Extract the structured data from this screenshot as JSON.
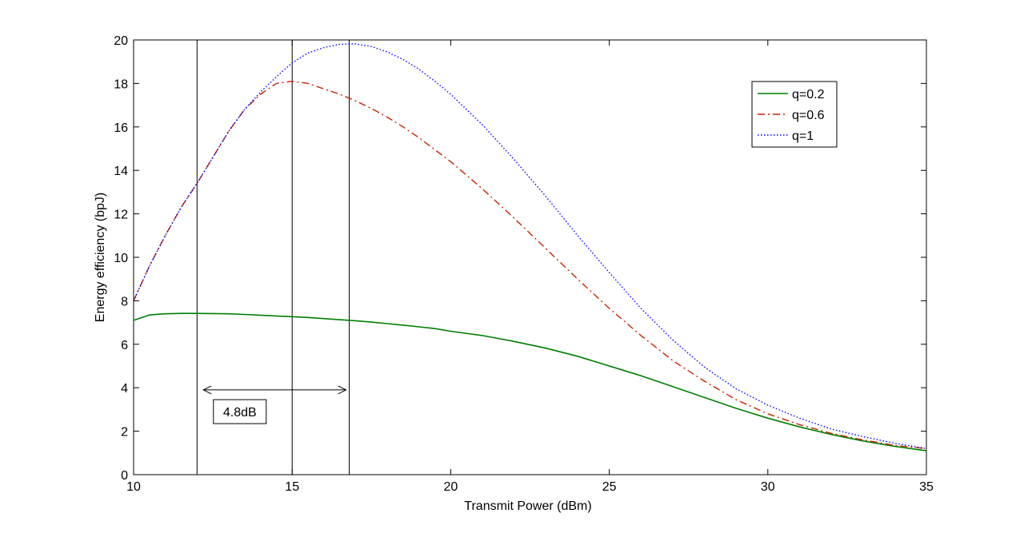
{
  "chart_data": {
    "type": "line",
    "title": "",
    "xlabel": "Transmit Power (dBm)",
    "ylabel": "Energy efficiency (bpJ)",
    "xlim": [
      10,
      35
    ],
    "ylim": [
      0,
      20
    ],
    "xticks": [
      10,
      15,
      20,
      25,
      30,
      35
    ],
    "yticks": [
      0,
      2,
      4,
      6,
      8,
      10,
      12,
      14,
      16,
      18,
      20
    ],
    "grid": false,
    "legend_position": "top-right",
    "x": [
      10,
      10.5,
      11,
      11.5,
      12,
      12.5,
      13,
      13.5,
      14,
      14.5,
      15,
      15.5,
      16,
      16.5,
      17,
      17.5,
      18,
      18.5,
      19,
      19.5,
      20,
      21,
      22,
      23,
      24,
      25,
      26,
      27,
      28,
      29,
      30,
      31,
      32,
      33,
      34,
      35
    ],
    "series": [
      {
        "name": "q=0.2",
        "color": "#007f00",
        "dash": "solid",
        "values": [
          7.1,
          7.35,
          7.4,
          7.42,
          7.42,
          7.41,
          7.4,
          7.37,
          7.34,
          7.3,
          7.27,
          7.23,
          7.18,
          7.13,
          7.08,
          7.02,
          6.95,
          6.88,
          6.8,
          6.72,
          6.6,
          6.4,
          6.13,
          5.82,
          5.45,
          5.0,
          4.55,
          4.05,
          3.55,
          3.05,
          2.6,
          2.2,
          1.85,
          1.55,
          1.3,
          1.1
        ]
      },
      {
        "name": "q=0.6",
        "color": "#cc2200",
        "dash": "dashdot",
        "values": [
          8.0,
          9.6,
          11.0,
          12.3,
          13.4,
          14.6,
          15.8,
          16.8,
          17.5,
          18.0,
          18.1,
          18.0,
          17.75,
          17.5,
          17.2,
          16.85,
          16.45,
          16.0,
          15.5,
          14.95,
          14.4,
          13.15,
          11.8,
          10.4,
          9.0,
          7.65,
          6.4,
          5.25,
          4.3,
          3.45,
          2.8,
          2.3,
          1.9,
          1.6,
          1.35,
          1.2
        ]
      },
      {
        "name": "q=1",
        "color": "#0000ff",
        "dash": "dotted",
        "values": [
          8.0,
          9.6,
          11.0,
          12.3,
          13.4,
          14.6,
          15.8,
          16.8,
          17.6,
          18.3,
          18.95,
          19.4,
          19.65,
          19.8,
          19.82,
          19.7,
          19.45,
          19.1,
          18.65,
          18.1,
          17.5,
          16.1,
          14.5,
          12.8,
          11.0,
          9.3,
          7.65,
          6.2,
          4.95,
          3.95,
          3.2,
          2.6,
          2.1,
          1.75,
          1.45,
          1.2
        ]
      }
    ],
    "reference_lines_x": [
      12.0,
      15.0,
      16.8
    ],
    "annotation": {
      "text": "4.8dB",
      "arrow_from_x": 12.2,
      "arrow_to_x": 16.7,
      "arrow_y": 3.9,
      "box_x": 13.35,
      "box_y": 2.9
    }
  }
}
